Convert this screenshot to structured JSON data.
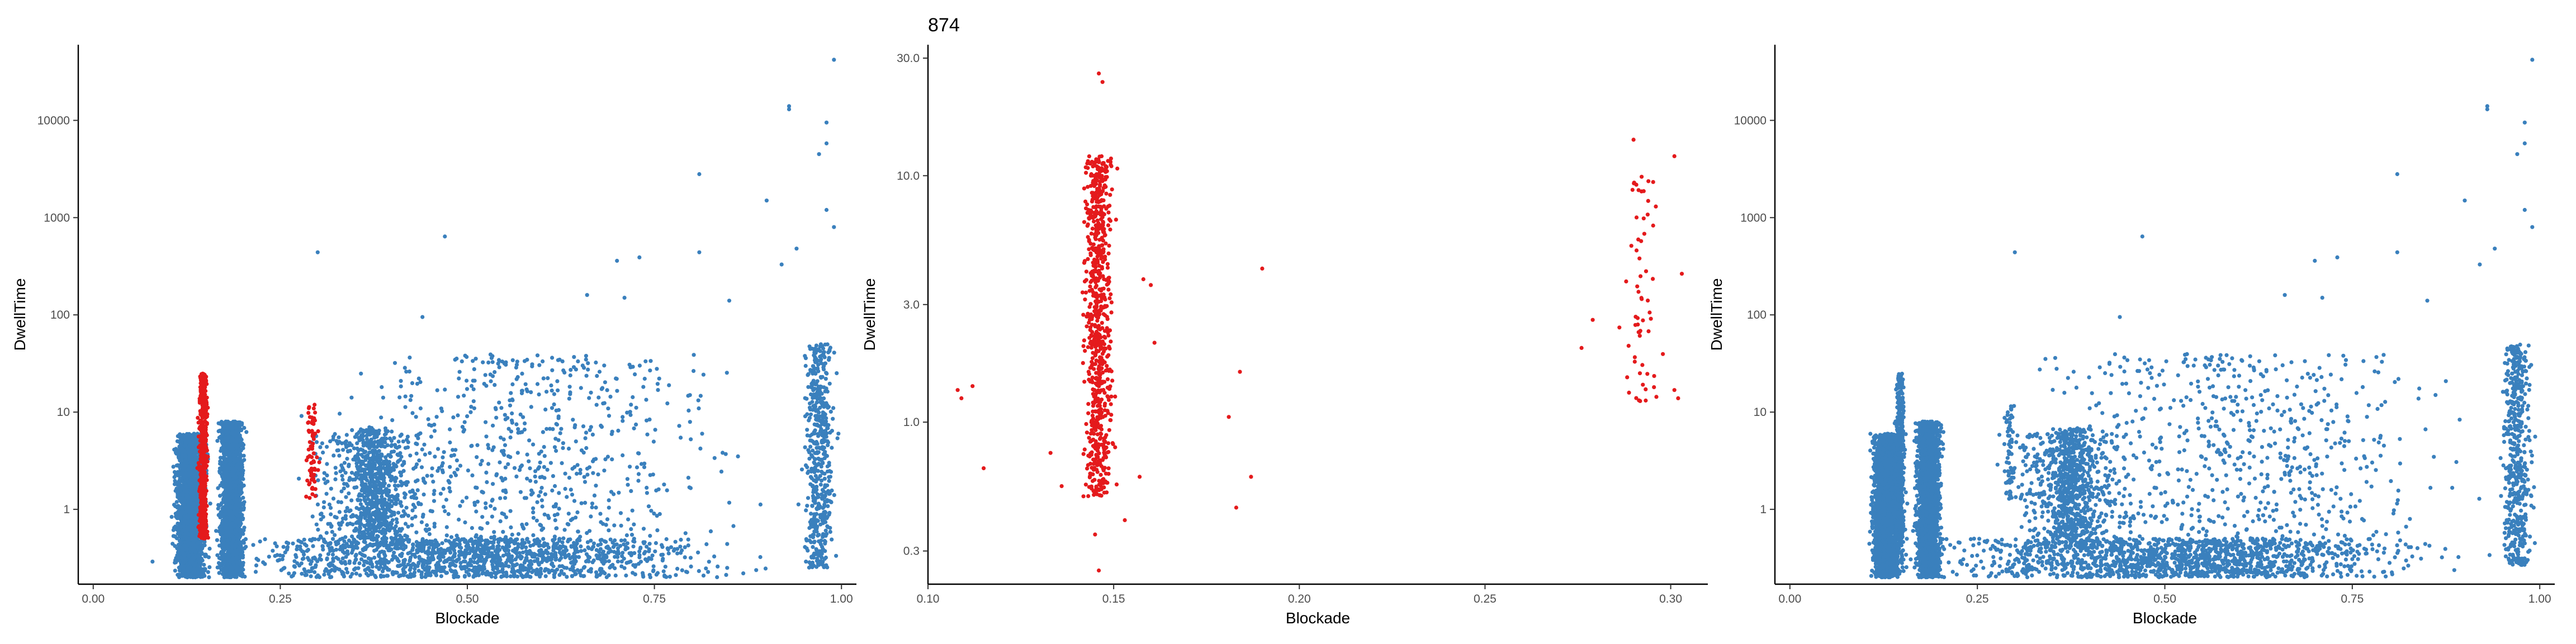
{
  "chart_data": [
    {
      "type": "scatter",
      "title": "",
      "xlabel": "Blockade",
      "ylabel": "DwellTime",
      "xlim": [
        -0.02,
        1.02
      ],
      "ylim": [
        0.17,
        60000
      ],
      "y_scale": "log",
      "x_ticks": [
        0.0,
        0.25,
        0.5,
        0.75,
        1.0
      ],
      "x_tick_labels": [
        "0.00",
        "0.25",
        "0.50",
        "0.75",
        "1.00"
      ],
      "y_ticks": [
        1,
        10,
        100,
        1000,
        10000
      ],
      "y_tick_labels": [
        "1",
        "10",
        "100",
        "1000",
        "10000"
      ],
      "grid": false,
      "legend": "none",
      "series": [
        {
          "color": "#3a80bd",
          "clusters": [
            {
              "x_range": [
                0.1,
                0.16
              ],
              "y_range": [
                0.2,
                6
              ],
              "count": 2600
            },
            {
              "x_range": [
                0.16,
                0.21
              ],
              "y_range": [
                0.2,
                8
              ],
              "count": 2200
            },
            {
              "x_range": [
                0.02,
                1.0
              ],
              "y_range": [
                0.2,
                0.5
              ],
              "count": 1300
            },
            {
              "x_range": [
                0.33,
                0.42
              ],
              "y_range": [
                0.5,
                7
              ],
              "count": 400
            },
            {
              "x_range": [
                0.25,
                0.5
              ],
              "y_range": [
                0.4,
                6
              ],
              "count": 500
            },
            {
              "x_range": [
                0.2,
                1.0
              ],
              "y_range": [
                0.3,
                40
              ],
              "count": 700
            },
            {
              "x_range": [
                0.94,
                1.0
              ],
              "y_range": [
                0.25,
                50
              ],
              "count": 500
            }
          ],
          "points": [
            {
              "x": 0.3,
              "y": 440
            },
            {
              "x": 0.47,
              "y": 640
            },
            {
              "x": 0.44,
              "y": 95
            },
            {
              "x": 0.81,
              "y": 2800
            },
            {
              "x": 0.93,
              "y": 14000
            },
            {
              "x": 0.93,
              "y": 13000
            },
            {
              "x": 0.9,
              "y": 1500
            },
            {
              "x": 0.98,
              "y": 9500
            },
            {
              "x": 0.98,
              "y": 5800
            },
            {
              "x": 0.99,
              "y": 42000
            },
            {
              "x": 0.97,
              "y": 4500
            },
            {
              "x": 0.7,
              "y": 360
            },
            {
              "x": 0.73,
              "y": 390
            },
            {
              "x": 0.81,
              "y": 440
            },
            {
              "x": 0.94,
              "y": 480
            },
            {
              "x": 0.98,
              "y": 1200
            },
            {
              "x": 0.99,
              "y": 800
            },
            {
              "x": 0.92,
              "y": 330
            },
            {
              "x": 0.66,
              "y": 160
            },
            {
              "x": 0.71,
              "y": 150
            },
            {
              "x": 0.85,
              "y": 140
            }
          ]
        },
        {
          "color": "#e41a1c",
          "clusters": [
            {
              "x_range": [
                0.138,
                0.156
              ],
              "y_range": [
                0.5,
                25
              ],
              "count": 550
            },
            {
              "x_range": [
                0.28,
                0.305
              ],
              "y_range": [
                1.2,
                12
              ],
              "count": 70
            }
          ]
        }
      ]
    },
    {
      "type": "scatter",
      "title": "874",
      "xlabel": "Blockade",
      "ylabel": "DwellTime",
      "xlim": [
        0.1,
        0.31
      ],
      "ylim": [
        0.22,
        34
      ],
      "y_scale": "log",
      "x_ticks": [
        0.1,
        0.15,
        0.2,
        0.25,
        0.3
      ],
      "x_tick_labels": [
        "0.10",
        "0.15",
        "0.20",
        "0.25",
        "0.30"
      ],
      "y_ticks": [
        0.3,
        1.0,
        3.0,
        10.0,
        30.0
      ],
      "y_tick_labels": [
        "0.3",
        "1.0",
        "3.0",
        "10.0",
        "30.0"
      ],
      "grid": false,
      "legend": "none",
      "series": [
        {
          "color": "#e41a1c",
          "clusters": [
            {
              "x_range": [
                0.14,
                0.152
              ],
              "y_range": [
                0.5,
                12
              ],
              "count": 760
            },
            {
              "x_range": [
                0.284,
                0.3
              ],
              "y_range": [
                1.2,
                10
              ],
              "count": 60
            }
          ],
          "points": [
            {
              "x": 0.146,
              "y": 26
            },
            {
              "x": 0.147,
              "y": 24
            },
            {
              "x": 0.145,
              "y": 0.35
            },
            {
              "x": 0.146,
              "y": 0.25
            },
            {
              "x": 0.108,
              "y": 1.35
            },
            {
              "x": 0.109,
              "y": 1.25
            },
            {
              "x": 0.112,
              "y": 1.4
            },
            {
              "x": 0.115,
              "y": 0.65
            },
            {
              "x": 0.133,
              "y": 0.75
            },
            {
              "x": 0.136,
              "y": 0.55
            },
            {
              "x": 0.153,
              "y": 0.4
            },
            {
              "x": 0.157,
              "y": 0.6
            },
            {
              "x": 0.158,
              "y": 3.8
            },
            {
              "x": 0.16,
              "y": 3.6
            },
            {
              "x": 0.161,
              "y": 2.1
            },
            {
              "x": 0.181,
              "y": 1.05
            },
            {
              "x": 0.184,
              "y": 1.6
            },
            {
              "x": 0.183,
              "y": 0.45
            },
            {
              "x": 0.187,
              "y": 0.6
            },
            {
              "x": 0.19,
              "y": 4.2
            },
            {
              "x": 0.276,
              "y": 2.0
            },
            {
              "x": 0.279,
              "y": 2.6
            },
            {
              "x": 0.29,
              "y": 14
            },
            {
              "x": 0.301,
              "y": 12
            },
            {
              "x": 0.301,
              "y": 1.35
            },
            {
              "x": 0.302,
              "y": 1.25
            },
            {
              "x": 0.303,
              "y": 4.0
            },
            {
              "x": 0.294,
              "y": 9.5
            },
            {
              "x": 0.296,
              "y": 7.5
            }
          ]
        }
      ]
    },
    {
      "type": "scatter",
      "title": "",
      "xlabel": "Blockade",
      "ylabel": "DwellTime",
      "xlim": [
        -0.02,
        1.02
      ],
      "ylim": [
        0.17,
        60000
      ],
      "y_scale": "log",
      "x_ticks": [
        0.0,
        0.25,
        0.5,
        0.75,
        1.0
      ],
      "x_tick_labels": [
        "0.00",
        "0.25",
        "0.50",
        "0.75",
        "1.00"
      ],
      "y_ticks": [
        1,
        10,
        100,
        1000,
        10000
      ],
      "y_tick_labels": [
        "1",
        "10",
        "100",
        "1000",
        "10000"
      ],
      "grid": false,
      "legend": "none",
      "series": [
        {
          "color": "#3a80bd",
          "clusters": [
            {
              "x_range": [
                0.1,
                0.16
              ],
              "y_range": [
                0.2,
                6
              ],
              "count": 2600
            },
            {
              "x_range": [
                0.16,
                0.21
              ],
              "y_range": [
                0.2,
                8
              ],
              "count": 2200
            },
            {
              "x_range": [
                0.02,
                1.0
              ],
              "y_range": [
                0.2,
                0.5
              ],
              "count": 1300
            },
            {
              "x_range": [
                0.33,
                0.42
              ],
              "y_range": [
                0.5,
                7
              ],
              "count": 400
            },
            {
              "x_range": [
                0.25,
                0.5
              ],
              "y_range": [
                0.4,
                6
              ],
              "count": 500
            },
            {
              "x_range": [
                0.2,
                1.0
              ],
              "y_range": [
                0.3,
                40
              ],
              "count": 700
            },
            {
              "x_range": [
                0.94,
                1.0
              ],
              "y_range": [
                0.25,
                50
              ],
              "count": 500
            },
            {
              "x_range": [
                0.138,
                0.156
              ],
              "y_range": [
                0.5,
                25
              ],
              "count": 400
            },
            {
              "x_range": [
                0.28,
                0.305
              ],
              "y_range": [
                1.2,
                12
              ],
              "count": 60
            }
          ],
          "points": [
            {
              "x": 0.3,
              "y": 440
            },
            {
              "x": 0.47,
              "y": 640
            },
            {
              "x": 0.44,
              "y": 95
            },
            {
              "x": 0.81,
              "y": 2800
            },
            {
              "x": 0.93,
              "y": 14000
            },
            {
              "x": 0.93,
              "y": 13000
            },
            {
              "x": 0.9,
              "y": 1500
            },
            {
              "x": 0.98,
              "y": 9500
            },
            {
              "x": 0.98,
              "y": 5800
            },
            {
              "x": 0.99,
              "y": 42000
            },
            {
              "x": 0.97,
              "y": 4500
            },
            {
              "x": 0.7,
              "y": 360
            },
            {
              "x": 0.73,
              "y": 390
            },
            {
              "x": 0.81,
              "y": 440
            },
            {
              "x": 0.94,
              "y": 480
            },
            {
              "x": 0.98,
              "y": 1200
            },
            {
              "x": 0.99,
              "y": 800
            },
            {
              "x": 0.92,
              "y": 330
            },
            {
              "x": 0.66,
              "y": 160
            },
            {
              "x": 0.71,
              "y": 150
            },
            {
              "x": 0.85,
              "y": 140
            }
          ]
        }
      ]
    }
  ]
}
